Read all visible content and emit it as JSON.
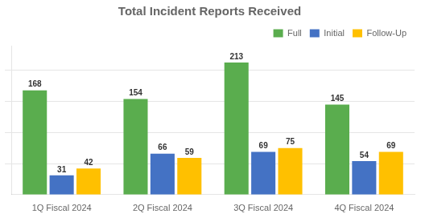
{
  "chart_data": {
    "type": "bar",
    "title": "Total Incident Reports Received",
    "categories": [
      "1Q Fiscal 2024",
      "2Q Fiscal 2024",
      "3Q Fiscal 2024",
      "4Q Fiscal 2024"
    ],
    "series": [
      {
        "name": "Full",
        "color": "#5aad4e",
        "values": [
          168,
          154,
          213,
          145
        ]
      },
      {
        "name": "Initial",
        "color": "#4472c4",
        "values": [
          31,
          66,
          69,
          54
        ]
      },
      {
        "name": "Follow-Up",
        "color": "#ffc000",
        "values": [
          42,
          59,
          75,
          69
        ]
      }
    ],
    "ylim": [
      0,
      240
    ],
    "yticks": [
      50,
      100,
      150,
      200
    ],
    "grid": true,
    "legend": "upper right",
    "data_labels": true,
    "tick_labels": "x"
  }
}
